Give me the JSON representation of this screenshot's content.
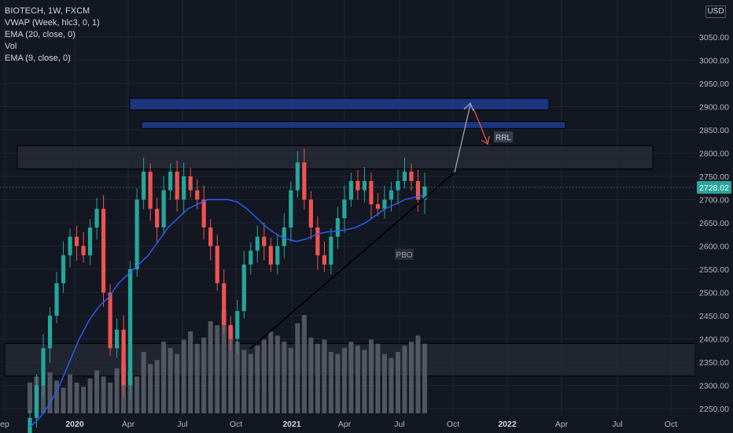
{
  "legend": {
    "symbol": "BIOTECH, 1W, FXCM",
    "ind1": "VWAP (Week, hlc3, 0, 1)",
    "ind2": "EMA (20, close, 0)",
    "ind3": "Vol",
    "ind4": "EMA (9, close, 0)"
  },
  "currency_button": "USD",
  "price_tag": "2728.02",
  "annotations": {
    "rrl": "RRL",
    "pbo": "PBO"
  },
  "colors": {
    "up": "#26a69a",
    "down": "#ef5350",
    "ema": "#2962ff",
    "zone": "#1e3a8a",
    "bg": "#131722",
    "grid": "#1f2433"
  },
  "chart_data": {
    "type": "candlestick",
    "symbol": "BIOTECH",
    "interval": "1W",
    "ylim": [
      2240,
      3120
    ],
    "y_ticks": [
      3050,
      3000,
      2950,
      2900,
      2850,
      2800,
      2750,
      2700,
      2650,
      2600,
      2550,
      2500,
      2450,
      2400,
      2350,
      2300,
      2250
    ],
    "x_ticks": [
      "ep",
      "2020",
      "Apr",
      "Jul",
      "Oct",
      "2021",
      "Apr",
      "Jul",
      "Oct",
      "2022",
      "Apr",
      "Jul",
      "Oct"
    ],
    "last_price": 2728.02,
    "series": [
      {
        "name": "EMA (20, close, 0)",
        "y": [
          2210,
          2230,
          2260,
          2300,
          2350,
          2400,
          2440,
          2470,
          2490,
          2520,
          2540,
          2560,
          2580,
          2610,
          2640,
          2660,
          2680,
          2690,
          2700,
          2700,
          2700,
          2695,
          2680,
          2660,
          2640,
          2625,
          2615,
          2610,
          2615,
          2625,
          2630,
          2632,
          2635,
          2640,
          2650,
          2665,
          2680,
          2690,
          2700,
          2705,
          2710
        ]
      },
      {
        "name": "Close",
        "y": [
          2230,
          2300,
          2380,
          2450,
          2520,
          2580,
          2620,
          2600,
          2580,
          2640,
          2680,
          2500,
          2380,
          2420,
          2300,
          2550,
          2700,
          2760,
          2680,
          2640,
          2720,
          2760,
          2700,
          2750,
          2720,
          2700,
          2640,
          2600,
          2520,
          2430,
          2400,
          2460,
          2560,
          2590,
          2620,
          2600,
          2560,
          2600,
          2640,
          2720,
          2780,
          2700,
          2640,
          2580,
          2560,
          2620,
          2660,
          2700,
          2740,
          2720,
          2740,
          2690,
          2680,
          2700,
          2720,
          2740,
          2760,
          2740,
          2700,
          2728
        ]
      }
    ],
    "zones": [
      {
        "label": "",
        "top": 2918,
        "bottom": 2893
      },
      {
        "label": "",
        "top": 2868,
        "bottom": 2853
      },
      {
        "label": "",
        "top": 2816,
        "bottom": 2766
      },
      {
        "label": "",
        "top": 2390,
        "bottom": 2320
      }
    ]
  }
}
